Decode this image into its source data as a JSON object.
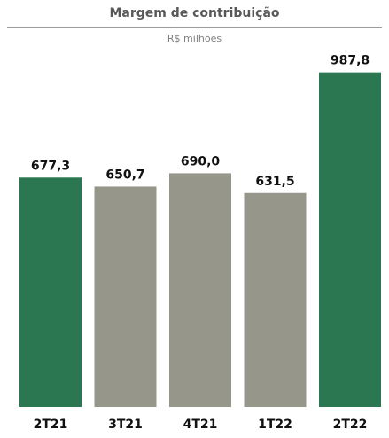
{
  "colors": {
    "highlight": "#2a7751",
    "neutral": "#97968b",
    "label": "#111111",
    "title": "#595959"
  },
  "chart_data": {
    "type": "bar",
    "title": "Margem de contribuição",
    "subtitle": "R$ milhões",
    "categories": [
      "2T21",
      "3T21",
      "4T21",
      "1T22",
      "2T22"
    ],
    "values": [
      677.3,
      650.7,
      690.0,
      631.5,
      987.8
    ],
    "value_labels": [
      "677,3",
      "650,7",
      "690,0",
      "631,5",
      "987,8"
    ],
    "highlighted": [
      true,
      false,
      false,
      false,
      true
    ],
    "ylim": [
      0,
      1000
    ],
    "xlabel": "",
    "ylabel": "",
    "grid": false,
    "legend": "none"
  }
}
